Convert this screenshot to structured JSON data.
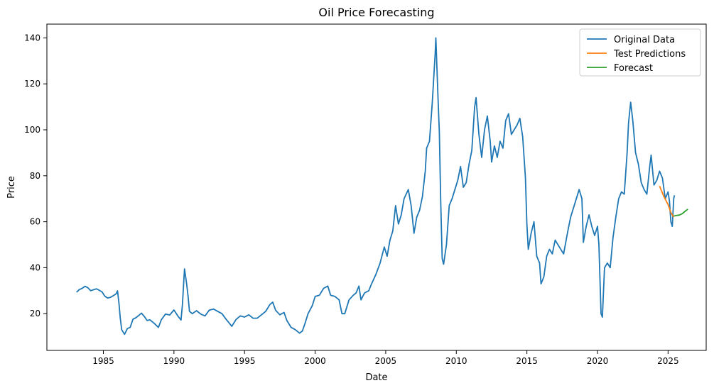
{
  "chart_data": {
    "type": "line",
    "title": "Oil Price Forecasting",
    "xlabel": "Date",
    "ylabel": "Price",
    "xlim": [
      1981.0,
      2027.7
    ],
    "ylim": [
      4.0,
      146.0
    ],
    "x_ticks": [
      1985,
      1990,
      1995,
      2000,
      2005,
      2010,
      2015,
      2020,
      2025
    ],
    "y_ticks": [
      20,
      40,
      60,
      80,
      100,
      120,
      140
    ],
    "grid": false,
    "legend_position": "top-right",
    "series": [
      {
        "name": "Original Data",
        "color": "#1f77b4",
        "points": [
          [
            1983.1,
            29.3
          ],
          [
            1983.3,
            30.5
          ],
          [
            1983.5,
            31.0
          ],
          [
            1983.7,
            31.9
          ],
          [
            1983.9,
            31.3
          ],
          [
            1984.1,
            30.0
          ],
          [
            1984.3,
            30.4
          ],
          [
            1984.5,
            30.8
          ],
          [
            1984.7,
            30.2
          ],
          [
            1984.9,
            29.5
          ],
          [
            1985.1,
            27.6
          ],
          [
            1985.3,
            26.8
          ],
          [
            1985.5,
            27.1
          ],
          [
            1985.7,
            27.8
          ],
          [
            1985.9,
            28.6
          ],
          [
            1986.0,
            29.9
          ],
          [
            1986.1,
            25.0
          ],
          [
            1986.2,
            18.0
          ],
          [
            1986.3,
            13.0
          ],
          [
            1986.5,
            11.0
          ],
          [
            1986.7,
            13.5
          ],
          [
            1986.9,
            14.0
          ],
          [
            1987.1,
            17.6
          ],
          [
            1987.3,
            18.2
          ],
          [
            1987.5,
            19.2
          ],
          [
            1987.7,
            20.2
          ],
          [
            1987.9,
            18.8
          ],
          [
            1988.1,
            17.0
          ],
          [
            1988.3,
            17.3
          ],
          [
            1988.6,
            15.8
          ],
          [
            1988.9,
            14.0
          ],
          [
            1989.1,
            17.3
          ],
          [
            1989.4,
            19.8
          ],
          [
            1989.7,
            19.4
          ],
          [
            1990.0,
            21.6
          ],
          [
            1990.3,
            18.8
          ],
          [
            1990.5,
            17.2
          ],
          [
            1990.6,
            24.0
          ],
          [
            1990.75,
            39.5
          ],
          [
            1990.9,
            33.0
          ],
          [
            1991.0,
            27.6
          ],
          [
            1991.1,
            21.0
          ],
          [
            1991.3,
            20.0
          ],
          [
            1991.6,
            21.3
          ],
          [
            1991.9,
            19.8
          ],
          [
            1992.2,
            19.0
          ],
          [
            1992.5,
            21.5
          ],
          [
            1992.8,
            22.0
          ],
          [
            1993.1,
            21.0
          ],
          [
            1993.4,
            20.0
          ],
          [
            1993.7,
            17.5
          ],
          [
            1993.9,
            16.0
          ],
          [
            1994.1,
            14.5
          ],
          [
            1994.4,
            17.5
          ],
          [
            1994.7,
            19.0
          ],
          [
            1995.0,
            18.5
          ],
          [
            1995.3,
            19.5
          ],
          [
            1995.6,
            18.0
          ],
          [
            1995.9,
            18.0
          ],
          [
            1996.2,
            19.5
          ],
          [
            1996.5,
            21.0
          ],
          [
            1996.8,
            24.0
          ],
          [
            1997.0,
            25.0
          ],
          [
            1997.2,
            21.5
          ],
          [
            1997.5,
            19.5
          ],
          [
            1997.8,
            20.5
          ],
          [
            1998.0,
            17.0
          ],
          [
            1998.3,
            14.0
          ],
          [
            1998.6,
            13.0
          ],
          [
            1998.9,
            11.5
          ],
          [
            1999.1,
            12.5
          ],
          [
            1999.3,
            16.0
          ],
          [
            1999.5,
            20.0
          ],
          [
            1999.8,
            23.5
          ],
          [
            2000.0,
            27.5
          ],
          [
            2000.3,
            28.0
          ],
          [
            2000.6,
            31.0
          ],
          [
            2000.9,
            32.0
          ],
          [
            2001.1,
            28.0
          ],
          [
            2001.4,
            27.5
          ],
          [
            2001.7,
            26.0
          ],
          [
            2001.9,
            20.0
          ],
          [
            2002.1,
            20.0
          ],
          [
            2002.4,
            26.0
          ],
          [
            2002.7,
            28.0
          ],
          [
            2002.9,
            29.0
          ],
          [
            2003.1,
            32.0
          ],
          [
            2003.25,
            26.0
          ],
          [
            2003.5,
            29.0
          ],
          [
            2003.8,
            30.0
          ],
          [
            2004.0,
            33.0
          ],
          [
            2004.3,
            37.0
          ],
          [
            2004.6,
            42.0
          ],
          [
            2004.9,
            49.0
          ],
          [
            2005.1,
            45.0
          ],
          [
            2005.3,
            52.0
          ],
          [
            2005.5,
            56.0
          ],
          [
            2005.7,
            67.0
          ],
          [
            2005.9,
            59.0
          ],
          [
            2006.1,
            63.0
          ],
          [
            2006.3,
            70.0
          ],
          [
            2006.6,
            74.0
          ],
          [
            2006.8,
            67.0
          ],
          [
            2007.0,
            55.0
          ],
          [
            2007.2,
            62.0
          ],
          [
            2007.4,
            65.0
          ],
          [
            2007.6,
            71.0
          ],
          [
            2007.8,
            82.0
          ],
          [
            2007.9,
            92.0
          ],
          [
            2008.1,
            95.0
          ],
          [
            2008.3,
            112.0
          ],
          [
            2008.5,
            133.0
          ],
          [
            2008.55,
            140.0
          ],
          [
            2008.7,
            115.0
          ],
          [
            2008.8,
            99.0
          ],
          [
            2008.9,
            68.0
          ],
          [
            2009.0,
            44.0
          ],
          [
            2009.1,
            41.5
          ],
          [
            2009.3,
            50.0
          ],
          [
            2009.5,
            67.0
          ],
          [
            2009.7,
            70.0
          ],
          [
            2009.9,
            74.0
          ],
          [
            2010.1,
            78.0
          ],
          [
            2010.3,
            84.0
          ],
          [
            2010.5,
            75.0
          ],
          [
            2010.7,
            77.0
          ],
          [
            2010.9,
            85.0
          ],
          [
            2011.1,
            91.0
          ],
          [
            2011.3,
            110.0
          ],
          [
            2011.4,
            114.0
          ],
          [
            2011.6,
            98.0
          ],
          [
            2011.8,
            88.0
          ],
          [
            2012.0,
            100.0
          ],
          [
            2012.2,
            106.0
          ],
          [
            2012.4,
            95.0
          ],
          [
            2012.5,
            86.0
          ],
          [
            2012.7,
            93.0
          ],
          [
            2012.9,
            88.0
          ],
          [
            2013.1,
            95.0
          ],
          [
            2013.3,
            92.0
          ],
          [
            2013.5,
            104.0
          ],
          [
            2013.7,
            107.0
          ],
          [
            2013.9,
            98.0
          ],
          [
            2014.1,
            100.0
          ],
          [
            2014.3,
            102.0
          ],
          [
            2014.5,
            105.0
          ],
          [
            2014.7,
            97.0
          ],
          [
            2014.9,
            79.0
          ],
          [
            2015.0,
            59.0
          ],
          [
            2015.1,
            48.0
          ],
          [
            2015.3,
            55.0
          ],
          [
            2015.5,
            60.0
          ],
          [
            2015.7,
            45.0
          ],
          [
            2015.9,
            42.0
          ],
          [
            2016.0,
            33.0
          ],
          [
            2016.2,
            36.0
          ],
          [
            2016.4,
            45.0
          ],
          [
            2016.6,
            48.0
          ],
          [
            2016.8,
            46.0
          ],
          [
            2017.0,
            52.0
          ],
          [
            2017.3,
            49.0
          ],
          [
            2017.6,
            46.0
          ],
          [
            2017.9,
            56.0
          ],
          [
            2018.1,
            62.0
          ],
          [
            2018.3,
            66.0
          ],
          [
            2018.5,
            70.0
          ],
          [
            2018.7,
            74.0
          ],
          [
            2018.9,
            70.0
          ],
          [
            2019.0,
            51.0
          ],
          [
            2019.2,
            58.0
          ],
          [
            2019.4,
            63.0
          ],
          [
            2019.6,
            58.0
          ],
          [
            2019.8,
            54.0
          ],
          [
            2020.0,
            58.0
          ],
          [
            2020.1,
            50.0
          ],
          [
            2020.2,
            30.0
          ],
          [
            2020.25,
            20.0
          ],
          [
            2020.35,
            18.5
          ],
          [
            2020.5,
            40.0
          ],
          [
            2020.7,
            42.0
          ],
          [
            2020.9,
            40.0
          ],
          [
            2021.1,
            53.0
          ],
          [
            2021.3,
            62.0
          ],
          [
            2021.5,
            70.0
          ],
          [
            2021.7,
            73.0
          ],
          [
            2021.9,
            72.0
          ],
          [
            2022.1,
            90.0
          ],
          [
            2022.2,
            103.0
          ],
          [
            2022.35,
            112.0
          ],
          [
            2022.5,
            104.0
          ],
          [
            2022.7,
            90.0
          ],
          [
            2022.9,
            85.0
          ],
          [
            2023.1,
            77.0
          ],
          [
            2023.3,
            74.0
          ],
          [
            2023.5,
            72.0
          ],
          [
            2023.7,
            84.0
          ],
          [
            2023.8,
            89.0
          ],
          [
            2024.0,
            76.0
          ],
          [
            2024.2,
            78.0
          ],
          [
            2024.4,
            82.0
          ],
          [
            2024.6,
            79.0
          ],
          [
            2024.8,
            70.0
          ],
          [
            2025.0,
            73.0
          ],
          [
            2025.1,
            69.0
          ],
          [
            2025.2,
            60.0
          ],
          [
            2025.3,
            58.0
          ],
          [
            2025.4,
            70.0
          ],
          [
            2025.45,
            71.5
          ]
        ]
      },
      {
        "name": "Test Predictions",
        "color": "#ff7f0e",
        "points": [
          [
            2024.4,
            75.5
          ],
          [
            2024.7,
            71.0
          ],
          [
            2025.0,
            67.5
          ],
          [
            2025.2,
            64.0
          ],
          [
            2025.4,
            62.0
          ]
        ]
      },
      {
        "name": "Forecast",
        "color": "#2ca02c",
        "points": [
          [
            2025.4,
            62.5
          ],
          [
            2025.6,
            62.7
          ],
          [
            2025.8,
            62.9
          ],
          [
            2026.0,
            63.5
          ],
          [
            2026.2,
            64.5
          ],
          [
            2026.4,
            65.5
          ]
        ]
      }
    ]
  }
}
